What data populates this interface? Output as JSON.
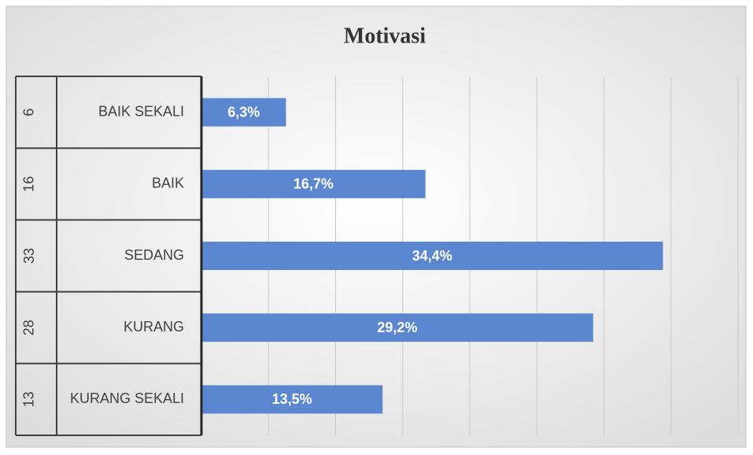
{
  "chart_data": {
    "type": "bar",
    "orientation": "horizontal",
    "title": "Motivasi",
    "categories": [
      "BAIK SEKALI",
      "BAIK",
      "SEDANG",
      "KURANG",
      "KURANG SEKALI"
    ],
    "group_labels": [
      6,
      16,
      33,
      28,
      13
    ],
    "values": [
      6.3,
      16.7,
      34.4,
      29.2,
      13.5
    ],
    "value_labels": [
      "6,3%",
      "16,7%",
      "34,4%",
      "29,2%",
      "13,5%"
    ],
    "color": "#5b87d0",
    "xlim": [
      0,
      40
    ],
    "xticks": [
      0,
      5,
      10,
      15,
      20,
      25,
      30,
      35,
      40
    ],
    "grid": true
  }
}
